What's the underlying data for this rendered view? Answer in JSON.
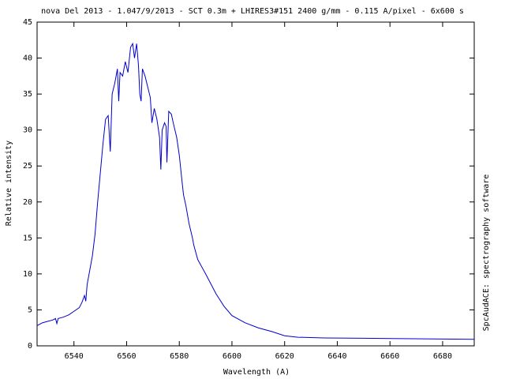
{
  "chart_data": {
    "type": "line",
    "title": "nova Del 2013 - 1.047/9/2013 - SCT 0.3m + LHIRES3#151 2400 g/mm - 0.115 A/pixel - 6x600 s",
    "x_label": "Wavelength (A)",
    "y_label": "Relative intensity",
    "side_text": "SpcAudACE: spectrography software",
    "xlim": [
      6526,
      6692
    ],
    "ylim": [
      0,
      45
    ],
    "xticks": [
      6540,
      6560,
      6580,
      6600,
      6620,
      6640,
      6660,
      6680
    ],
    "yticks": [
      0,
      5,
      10,
      15,
      20,
      25,
      30,
      35,
      40,
      45
    ],
    "grid": false,
    "series": [
      {
        "name": "spectrum",
        "color": "#0000cc",
        "x": [
          6526,
          6528,
          6530,
          6532,
          6533,
          6533.5,
          6534,
          6536,
          6538,
          6540,
          6542,
          6543,
          6544,
          6544.5,
          6545,
          6546,
          6547,
          6548,
          6549,
          6550,
          6551,
          6552,
          6553,
          6553.8,
          6554.5,
          6555.5,
          6556.5,
          6557,
          6557.5,
          6558.5,
          6559.5,
          6560.5,
          6561.5,
          6562.3,
          6563,
          6563.8,
          6564.5,
          6565,
          6565.5,
          6566,
          6567,
          6568,
          6569,
          6569.6,
          6570.5,
          6571.5,
          6572.5,
          6573,
          6573.5,
          6574.4,
          6575,
          6575.3,
          6576,
          6577,
          6577.7,
          6579,
          6580,
          6581,
          6581.6,
          6582.5,
          6583.7,
          6585,
          6585.5,
          6587,
          6590,
          6594,
          6597,
          6600,
          6605,
          6610,
          6615,
          6620,
          6625,
          6635,
          6650,
          6665,
          6680,
          6692
        ],
        "values": [
          2.8,
          3.2,
          3.4,
          3.6,
          3.8,
          3.1,
          3.8,
          4.0,
          4.3,
          4.8,
          5.3,
          6.0,
          7.0,
          6.2,
          8.5,
          10.5,
          12.5,
          15.5,
          20,
          24,
          28,
          31.5,
          32,
          27,
          35,
          36.5,
          38.5,
          34,
          38,
          37.5,
          39.5,
          38,
          41.5,
          42,
          40,
          42,
          39,
          35,
          34,
          38.5,
          37.5,
          36,
          34.5,
          31,
          33,
          31.5,
          29,
          24.5,
          30,
          31,
          30.5,
          25.5,
          32.6,
          32.2,
          31,
          29,
          26.5,
          23,
          21,
          19.5,
          17,
          15,
          14,
          12,
          10,
          7.2,
          5.5,
          4.2,
          3.2,
          2.5,
          2.0,
          1.4,
          1.2,
          1.1,
          1.05,
          1.0,
          0.95,
          0.9
        ]
      }
    ]
  }
}
